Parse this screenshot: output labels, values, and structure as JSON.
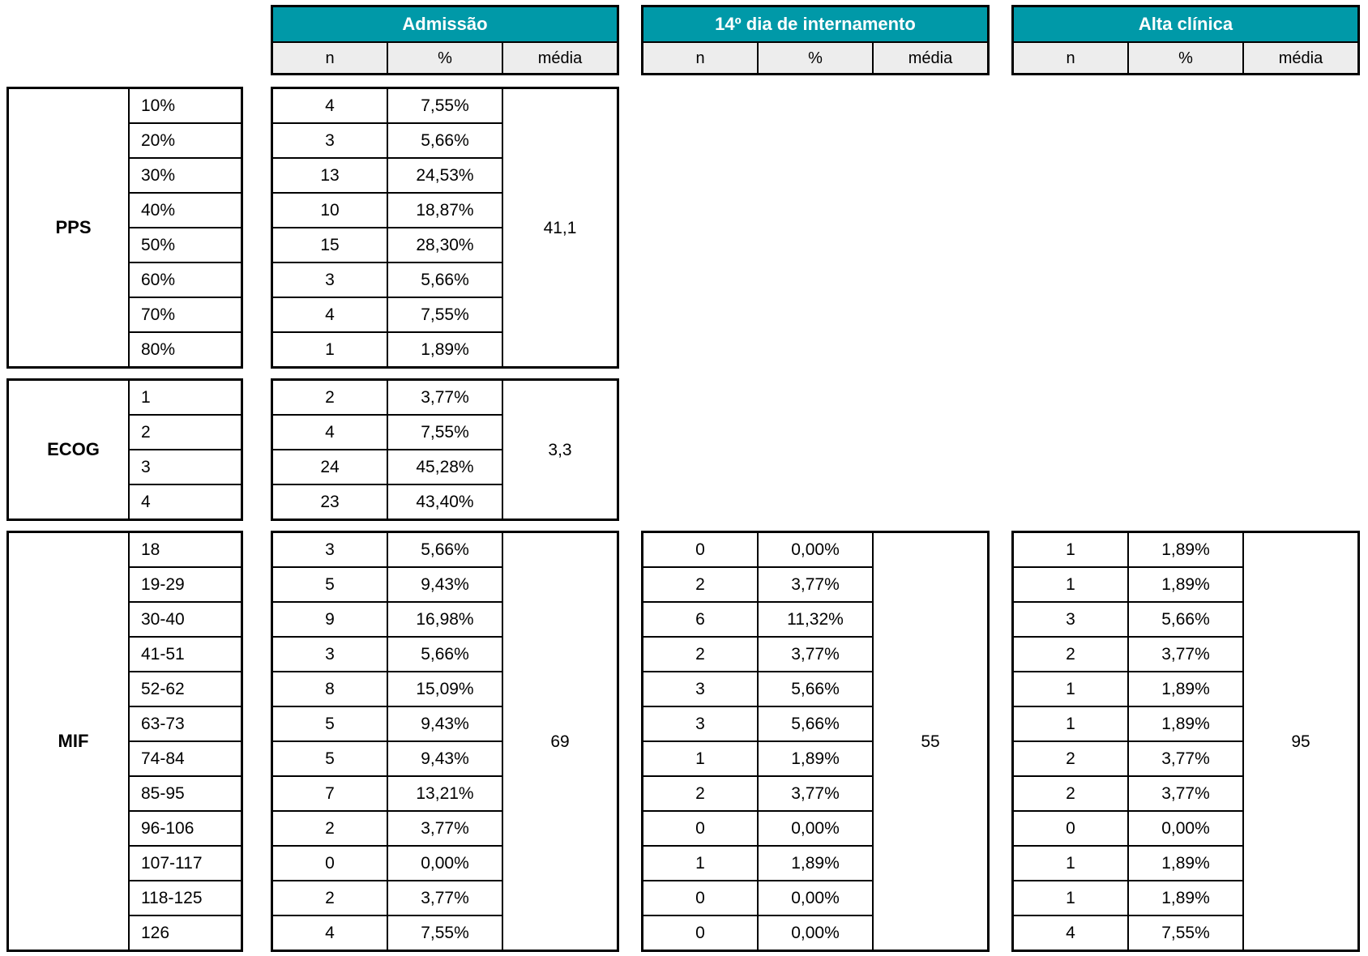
{
  "colors": {
    "header_bg": "#0099a8",
    "header_text": "#ffffff",
    "subheader_bg": "#ededed",
    "border": "#000000",
    "cell_bg": "#ffffff"
  },
  "table": {
    "periods": [
      {
        "id": "admissao",
        "title": "Admissão",
        "cols": [
          "n",
          "%",
          "média"
        ]
      },
      {
        "id": "dia14",
        "title": "14º dia de internamento",
        "cols": [
          "n",
          "%",
          "média"
        ]
      },
      {
        "id": "alta",
        "title": "Alta clínica",
        "cols": [
          "n",
          "%",
          "média"
        ]
      }
    ],
    "groups": [
      {
        "name": "PPS",
        "categories": [
          "10%",
          "20%",
          "30%",
          "40%",
          "50%",
          "60%",
          "70%",
          "80%"
        ],
        "admissao": {
          "n": [
            "4",
            "3",
            "13",
            "10",
            "15",
            "3",
            "4",
            "1"
          ],
          "pct": [
            "7,55%",
            "5,66%",
            "24,53%",
            "18,87%",
            "28,30%",
            "5,66%",
            "7,55%",
            "1,89%"
          ],
          "media": "41,1"
        },
        "dia14": null,
        "alta": null
      },
      {
        "name": "ECOG",
        "categories": [
          "1",
          "2",
          "3",
          "4"
        ],
        "admissao": {
          "n": [
            "2",
            "4",
            "24",
            "23"
          ],
          "pct": [
            "3,77%",
            "7,55%",
            "45,28%",
            "43,40%"
          ],
          "media": "3,3"
        },
        "dia14": null,
        "alta": null
      },
      {
        "name": "MIF",
        "categories": [
          "18",
          "19-29",
          "30-40",
          "41-51",
          "52-62",
          "63-73",
          "74-84",
          "85-95",
          "96-106",
          "107-117",
          "118-125",
          "126"
        ],
        "admissao": {
          "n": [
            "3",
            "5",
            "9",
            "3",
            "8",
            "5",
            "5",
            "7",
            "2",
            "0",
            "2",
            "4"
          ],
          "pct": [
            "5,66%",
            "9,43%",
            "16,98%",
            "5,66%",
            "15,09%",
            "9,43%",
            "9,43%",
            "13,21%",
            "3,77%",
            "0,00%",
            "3,77%",
            "7,55%"
          ],
          "media": "69"
        },
        "dia14": {
          "n": [
            "0",
            "2",
            "6",
            "2",
            "3",
            "3",
            "1",
            "2",
            "0",
            "1",
            "0",
            "0"
          ],
          "pct": [
            "0,00%",
            "3,77%",
            "11,32%",
            "3,77%",
            "5,66%",
            "5,66%",
            "1,89%",
            "3,77%",
            "0,00%",
            "1,89%",
            "0,00%",
            "0,00%"
          ],
          "media": "55"
        },
        "alta": {
          "n": [
            "1",
            "1",
            "3",
            "2",
            "1",
            "1",
            "2",
            "2",
            "0",
            "1",
            "1",
            "4"
          ],
          "pct": [
            "1,89%",
            "1,89%",
            "5,66%",
            "3,77%",
            "1,89%",
            "1,89%",
            "3,77%",
            "3,77%",
            "0,00%",
            "1,89%",
            "1,89%",
            "7,55%"
          ],
          "media": "95"
        }
      }
    ]
  }
}
